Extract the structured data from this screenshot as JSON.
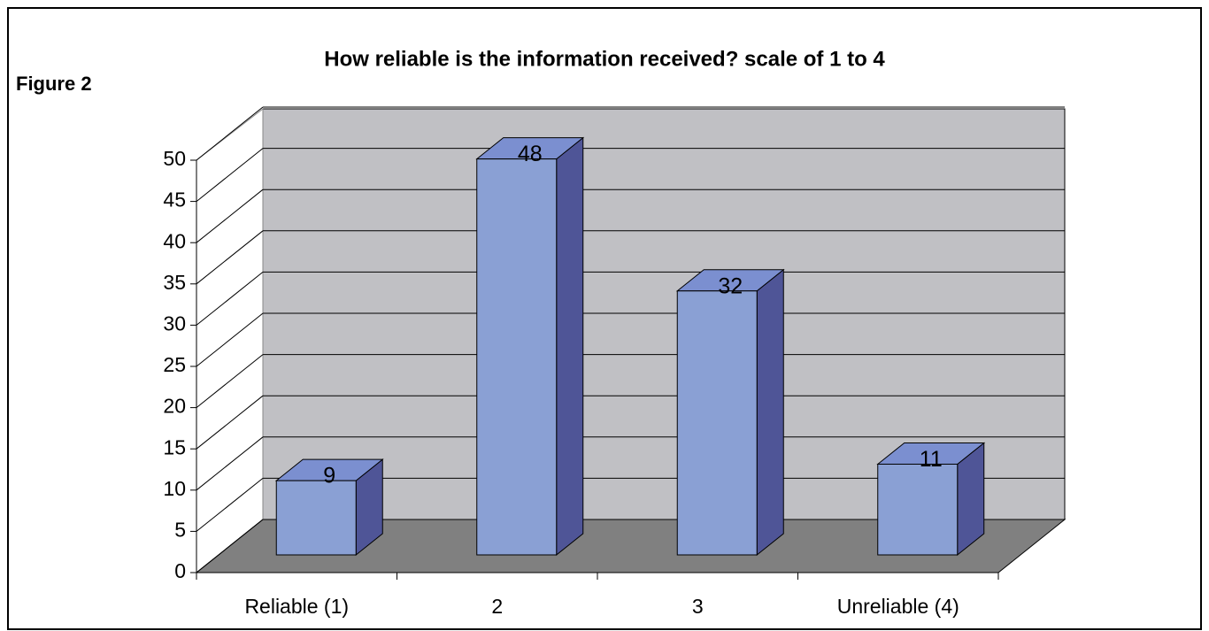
{
  "figure_label": "Figure 2",
  "chart_data": {
    "type": "bar3d",
    "title": "How reliable is the information received? scale of 1 to 4",
    "categories": [
      "Reliable (1)",
      "2",
      "3",
      "Unreliable (4)"
    ],
    "values": [
      9,
      48,
      32,
      11
    ],
    "color": "#8aa0d4",
    "ylim": [
      0,
      50
    ],
    "yticks": [
      0,
      5,
      10,
      15,
      20,
      25,
      30,
      35,
      40,
      45,
      50
    ],
    "grid": true
  }
}
